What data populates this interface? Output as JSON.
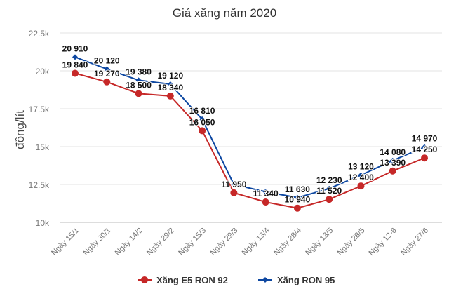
{
  "chart_data": {
    "type": "line",
    "title": "Giá xăng năm 2020",
    "xlabel": "",
    "ylabel": "đồng/lít",
    "ylim": [
      10000,
      22500
    ],
    "yticks": [
      10000,
      12500,
      15000,
      17500,
      20000,
      22500
    ],
    "ytick_labels": [
      "10k",
      "12.5k",
      "15k",
      "17.5k",
      "20k",
      "22.5k"
    ],
    "grid": true,
    "legend_position": "bottom",
    "categories": [
      "Ngày 15/1",
      "Ngày 30/1",
      "Ngày 14/2",
      "Ngày 29/2",
      "Ngày 15/3",
      "Ngày 29/3",
      "Ngày 13/4",
      "Ngày 28/4",
      "Ngày 13/5",
      "Ngày 28/5",
      "Ngày 12-6",
      "Ngày 27/6"
    ],
    "series": [
      {
        "name": "Xăng E5 RON 92",
        "color": "#c62828",
        "marker": "circle",
        "values": [
          19840,
          19270,
          18500,
          18340,
          16050,
          11950,
          11340,
          10940,
          11520,
          12400,
          13390,
          14250
        ],
        "labels": [
          "19 840",
          "19 270",
          "18 500",
          "18 340",
          "16 050",
          "11 950",
          "11 340",
          "10 940",
          "11 520",
          "12 400",
          "13 390",
          "14 250"
        ]
      },
      {
        "name": "Xăng RON 95",
        "color": "#0d47a1",
        "marker": "diamond",
        "values": [
          20910,
          20120,
          19380,
          19120,
          16810,
          12500,
          12020,
          11630,
          12230,
          13120,
          14080,
          14970
        ],
        "labels": [
          "20 910",
          "20 120",
          "19 380",
          "19 120",
          "16 810",
          null,
          null,
          "11 630",
          "12 230",
          "13 120",
          "14 080",
          "14 970"
        ]
      }
    ]
  }
}
